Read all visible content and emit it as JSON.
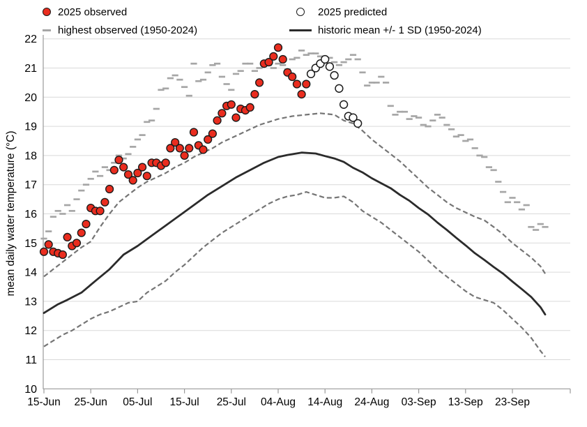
{
  "legend": {
    "observed": {
      "label": "2025 observed"
    },
    "predicted": {
      "label": "2025 predicted"
    },
    "highest": {
      "label": "highest observed (1950-2024)"
    },
    "historic": {
      "label": "historic mean +/- 1 SD (1950-2024)"
    }
  },
  "axes": {
    "y_title": "mean daily water temperature (°C)",
    "y_min": 10,
    "y_max": 22,
    "y_ticks": [
      10,
      11,
      12,
      13,
      14,
      15,
      16,
      17,
      18,
      19,
      20,
      21,
      22
    ],
    "x_ticks": [
      "15-Jun",
      "25-Jun",
      "05-Jul",
      "15-Jul",
      "25-Jul",
      "04-Aug",
      "14-Aug",
      "24-Aug",
      "03-Sep",
      "13-Sep",
      "23-Sep"
    ],
    "x_tick_days": [
      0,
      10,
      20,
      30,
      40,
      50,
      60,
      70,
      80,
      90,
      100
    ],
    "end_tick_day": 112.35
  },
  "colors": {
    "observed_fill": "#ea2d1f",
    "predicted_fill": "#ffffff",
    "marker_stroke": "#1a1a1a",
    "highest": "#a6a6a6",
    "mean": "#2b2b2b",
    "sd": "#757575",
    "grid": "#d9d9d9",
    "axis": "#999999",
    "text": "#000000"
  },
  "chart_data": {
    "type": "line",
    "title": "",
    "xlabel": "",
    "ylabel": "mean daily water temperature (°C)",
    "ylim": [
      10,
      22
    ],
    "x_unit": "days since 15-Jun (daily values)",
    "x_tick_labels": [
      "15-Jun",
      "25-Jun",
      "05-Jul",
      "15-Jul",
      "25-Jul",
      "04-Aug",
      "14-Aug",
      "24-Aug",
      "03-Sep",
      "13-Sep",
      "23-Sep"
    ],
    "grid": "horizontal",
    "legend_position": "top",
    "series": [
      {
        "name": "2025 observed",
        "kind": "scatter",
        "marker": "filled-circle",
        "color": "#ea2d1f",
        "start_day": 0,
        "values": [
          14.7,
          14.95,
          14.7,
          14.65,
          14.6,
          15.2,
          14.9,
          15.0,
          15.35,
          15.65,
          16.2,
          16.1,
          16.1,
          16.4,
          16.85,
          17.5,
          17.85,
          17.6,
          17.35,
          17.15,
          17.4,
          17.6,
          17.3,
          17.75,
          17.75,
          17.65,
          17.75,
          18.25,
          18.45,
          18.25,
          18.0,
          18.25,
          18.8,
          18.35,
          18.2,
          18.55,
          18.75,
          19.2,
          19.45,
          19.7,
          19.75,
          19.3,
          19.6,
          19.55,
          19.65,
          20.1,
          20.5,
          21.15,
          21.2,
          21.4,
          21.7,
          21.3,
          20.85,
          20.7,
          20.45,
          20.1,
          20.45
        ]
      },
      {
        "name": "2025 predicted",
        "kind": "scatter",
        "marker": "open-circle",
        "color": "#ffffff",
        "start_day": 57,
        "values": [
          20.8,
          21.0,
          21.15,
          21.3,
          21.05,
          20.75,
          20.3,
          19.75,
          19.35,
          19.3,
          19.1
        ]
      },
      {
        "name": "highest observed (1950-2024)",
        "kind": "dash-markers",
        "color": "#a6a6a6",
        "start_day": 0,
        "values": [
          15.15,
          15.4,
          15.9,
          16.1,
          16.0,
          16.3,
          16.1,
          16.5,
          16.8,
          17.0,
          17.2,
          17.45,
          17.3,
          17.6,
          17.5,
          17.75,
          18.0,
          17.9,
          18.05,
          18.3,
          18.55,
          18.7,
          19.15,
          19.2,
          19.6,
          20.25,
          20.3,
          20.65,
          20.75,
          20.6,
          20.35,
          20.05,
          21.15,
          20.55,
          20.6,
          20.85,
          21.1,
          21.15,
          20.7,
          20.45,
          20.25,
          20.8,
          20.9,
          21.15,
          21.15,
          20.9,
          21.0,
          21.2,
          21.1,
          21.0,
          21.15,
          21.1,
          20.95,
          21.3,
          21.35,
          21.6,
          21.45,
          21.5,
          21.5,
          21.4,
          21.3,
          21.35,
          21.2,
          21.1,
          21.2,
          21.3,
          21.45,
          21.3,
          20.85,
          20.4,
          20.5,
          20.5,
          20.7,
          20.5,
          19.7,
          19.4,
          19.5,
          19.5,
          19.25,
          19.35,
          19.3,
          19.05,
          19.0,
          19.2,
          19.4,
          19.3,
          19.05,
          18.9,
          18.65,
          18.7,
          18.5,
          18.55,
          18.25,
          18.0,
          17.95,
          17.6,
          17.5,
          17.1,
          16.75,
          16.4,
          16.55,
          16.4,
          16.15,
          16.3,
          15.55,
          15.45,
          15.65,
          15.55
        ]
      },
      {
        "name": "historic mean (1950-2024)",
        "kind": "line",
        "color": "#2b2b2b",
        "points": [
          [
            0,
            12.6
          ],
          [
            3,
            12.9
          ],
          [
            5,
            13.05
          ],
          [
            8,
            13.3
          ],
          [
            11,
            13.7
          ],
          [
            14,
            14.1
          ],
          [
            17,
            14.6
          ],
          [
            20,
            14.9
          ],
          [
            23,
            15.25
          ],
          [
            26,
            15.6
          ],
          [
            29,
            15.95
          ],
          [
            32,
            16.3
          ],
          [
            35,
            16.65
          ],
          [
            38,
            16.95
          ],
          [
            41,
            17.25
          ],
          [
            44,
            17.5
          ],
          [
            47,
            17.75
          ],
          [
            50,
            17.95
          ],
          [
            52,
            18.02
          ],
          [
            55,
            18.1
          ],
          [
            58,
            18.07
          ],
          [
            60,
            17.98
          ],
          [
            62,
            17.9
          ],
          [
            64,
            17.78
          ],
          [
            66,
            17.58
          ],
          [
            68,
            17.42
          ],
          [
            70,
            17.22
          ],
          [
            72,
            17.05
          ],
          [
            74,
            16.88
          ],
          [
            76,
            16.65
          ],
          [
            78,
            16.45
          ],
          [
            80,
            16.2
          ],
          [
            82,
            15.98
          ],
          [
            84,
            15.7
          ],
          [
            86,
            15.45
          ],
          [
            88,
            15.18
          ],
          [
            90,
            14.92
          ],
          [
            92,
            14.65
          ],
          [
            94,
            14.42
          ],
          [
            96,
            14.18
          ],
          [
            98,
            13.95
          ],
          [
            100,
            13.68
          ],
          [
            102,
            13.42
          ],
          [
            104,
            13.15
          ],
          [
            106,
            12.8
          ],
          [
            107,
            12.55
          ]
        ]
      },
      {
        "name": "historic mean +1 SD",
        "kind": "dashed-line",
        "color": "#757575",
        "points": [
          [
            0,
            13.85
          ],
          [
            2,
            14.1
          ],
          [
            4,
            14.35
          ],
          [
            6,
            14.6
          ],
          [
            8,
            14.85
          ],
          [
            10,
            15.05
          ],
          [
            12,
            15.55
          ],
          [
            14,
            16.0
          ],
          [
            16,
            16.4
          ],
          [
            18,
            16.65
          ],
          [
            20,
            16.9
          ],
          [
            22,
            17.1
          ],
          [
            24,
            17.25
          ],
          [
            26,
            17.4
          ],
          [
            28,
            17.6
          ],
          [
            30,
            17.75
          ],
          [
            32,
            17.95
          ],
          [
            34,
            18.1
          ],
          [
            36,
            18.25
          ],
          [
            38,
            18.45
          ],
          [
            40,
            18.6
          ],
          [
            42,
            18.75
          ],
          [
            44,
            18.9
          ],
          [
            46,
            19.05
          ],
          [
            48,
            19.15
          ],
          [
            50,
            19.25
          ],
          [
            53,
            19.35
          ],
          [
            56,
            19.4
          ],
          [
            59,
            19.45
          ],
          [
            62,
            19.4
          ],
          [
            64,
            19.2
          ],
          [
            66,
            19.1
          ],
          [
            68,
            18.85
          ],
          [
            70,
            18.55
          ],
          [
            72,
            18.3
          ],
          [
            74,
            18.05
          ],
          [
            76,
            17.8
          ],
          [
            78,
            17.5
          ],
          [
            80,
            17.2
          ],
          [
            82,
            16.9
          ],
          [
            84,
            16.65
          ],
          [
            86,
            16.4
          ],
          [
            88,
            16.2
          ],
          [
            90,
            16.05
          ],
          [
            92,
            15.9
          ],
          [
            94,
            15.78
          ],
          [
            96,
            15.55
          ],
          [
            98,
            15.3
          ],
          [
            100,
            15.0
          ],
          [
            102,
            14.75
          ],
          [
            104,
            14.5
          ],
          [
            106,
            14.2
          ],
          [
            107,
            13.95
          ]
        ]
      },
      {
        "name": "historic mean -1 SD",
        "kind": "dashed-line",
        "color": "#757575",
        "points": [
          [
            0,
            11.45
          ],
          [
            2,
            11.65
          ],
          [
            4,
            11.85
          ],
          [
            6,
            12.0
          ],
          [
            8,
            12.2
          ],
          [
            10,
            12.4
          ],
          [
            12,
            12.55
          ],
          [
            14,
            12.65
          ],
          [
            16,
            12.8
          ],
          [
            18,
            12.95
          ],
          [
            20,
            13.0
          ],
          [
            22,
            13.3
          ],
          [
            24,
            13.5
          ],
          [
            26,
            13.7
          ],
          [
            28,
            14.0
          ],
          [
            30,
            14.25
          ],
          [
            32,
            14.55
          ],
          [
            34,
            14.85
          ],
          [
            36,
            15.1
          ],
          [
            38,
            15.35
          ],
          [
            40,
            15.55
          ],
          [
            42,
            15.75
          ],
          [
            44,
            15.95
          ],
          [
            46,
            16.15
          ],
          [
            48,
            16.35
          ],
          [
            50,
            16.5
          ],
          [
            52,
            16.6
          ],
          [
            54,
            16.65
          ],
          [
            56,
            16.75
          ],
          [
            58,
            16.65
          ],
          [
            60,
            16.55
          ],
          [
            62,
            16.55
          ],
          [
            64,
            16.6
          ],
          [
            66,
            16.4
          ],
          [
            68,
            16.1
          ],
          [
            70,
            15.9
          ],
          [
            72,
            15.7
          ],
          [
            74,
            15.45
          ],
          [
            76,
            15.2
          ],
          [
            78,
            14.95
          ],
          [
            80,
            14.7
          ],
          [
            82,
            14.4
          ],
          [
            84,
            14.1
          ],
          [
            86,
            13.85
          ],
          [
            88,
            13.6
          ],
          [
            90,
            13.35
          ],
          [
            92,
            13.15
          ],
          [
            94,
            13.05
          ],
          [
            96,
            12.95
          ],
          [
            98,
            12.7
          ],
          [
            100,
            12.4
          ],
          [
            102,
            12.1
          ],
          [
            104,
            11.75
          ],
          [
            106,
            11.3
          ],
          [
            107,
            11.1
          ]
        ]
      }
    ]
  }
}
